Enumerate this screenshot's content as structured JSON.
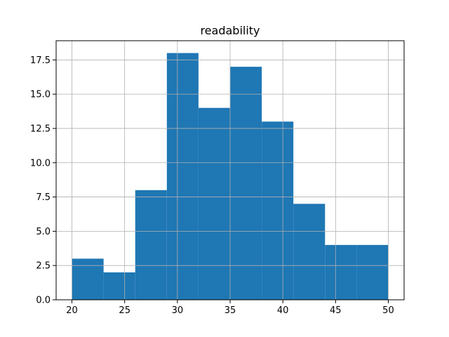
{
  "chart_data": {
    "type": "bar",
    "title": "readability",
    "xlabel": "",
    "ylabel": "",
    "bin_edges": [
      20,
      23,
      26,
      29,
      32,
      35,
      38,
      41,
      44,
      47,
      50
    ],
    "values": [
      3,
      2,
      8,
      18,
      14,
      17,
      13,
      7,
      4,
      4
    ],
    "xlim": [
      18.5,
      51.5
    ],
    "ylim": [
      0,
      18.9
    ],
    "x_ticks": [
      20,
      25,
      30,
      35,
      40,
      45,
      50
    ],
    "x_tick_labels": [
      "20",
      "25",
      "30",
      "35",
      "40",
      "45",
      "50"
    ],
    "y_ticks": [
      0,
      2.5,
      5,
      7.5,
      10,
      12.5,
      15,
      17.5
    ],
    "y_tick_labels": [
      "0.0",
      "2.5",
      "5.0",
      "7.5",
      "10.0",
      "12.5",
      "15.0",
      "17.5"
    ],
    "grid": true,
    "bar_color": "#1f77b4",
    "grid_color": "#b0b0b0"
  }
}
